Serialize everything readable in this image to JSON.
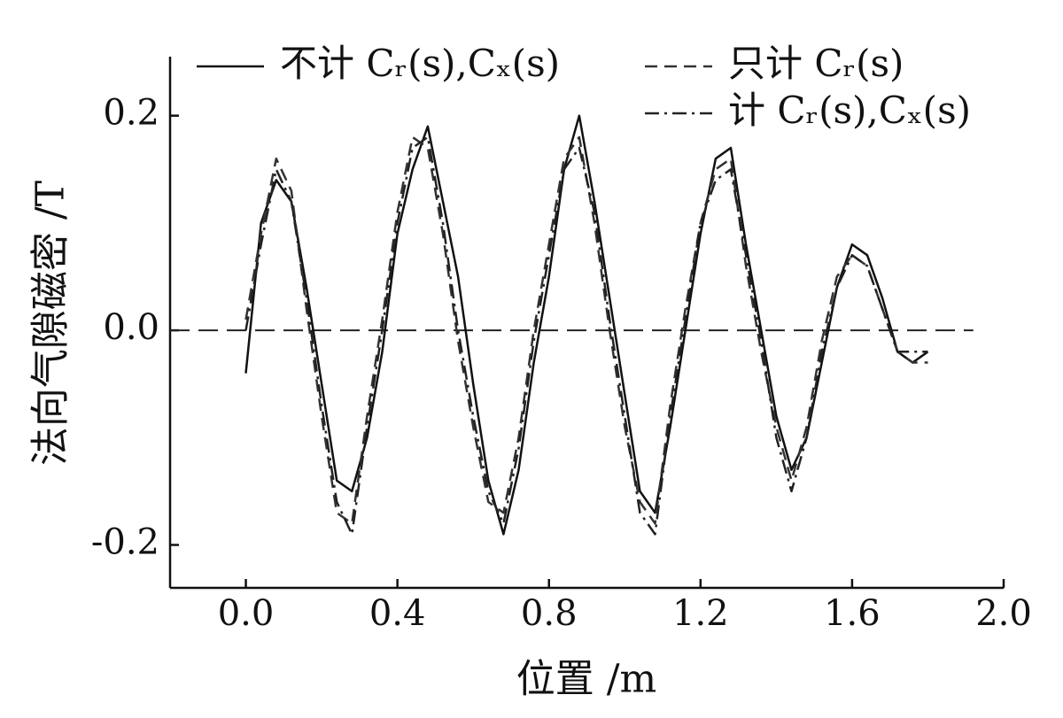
{
  "chart_data": {
    "type": "line",
    "x_label": "位置 /m",
    "y_label": "法向气隙磁密 /T",
    "x": [
      0,
      0.04,
      0.08,
      0.12,
      0.16,
      0.2,
      0.24,
      0.28,
      0.32,
      0.36,
      0.4,
      0.44,
      0.48,
      0.52,
      0.56,
      0.6,
      0.64,
      0.68,
      0.72,
      0.76,
      0.8,
      0.84,
      0.88,
      0.92,
      0.96,
      1.0,
      1.04,
      1.08,
      1.12,
      1.16,
      1.2,
      1.24,
      1.28,
      1.32,
      1.36,
      1.4,
      1.44,
      1.48,
      1.52,
      1.56,
      1.6,
      1.64,
      1.68,
      1.72,
      1.76,
      1.8
    ],
    "series": [
      {
        "name": "不计 Cᵣ(s),Cₓ(s)",
        "color": "#111111",
        "dash": "solid",
        "values": [
          -0.04,
          0.1,
          0.14,
          0.12,
          0.04,
          -0.05,
          -0.14,
          -0.15,
          -0.1,
          -0.02,
          0.09,
          0.15,
          0.19,
          0.12,
          0.05,
          -0.05,
          -0.14,
          -0.19,
          -0.13,
          -0.03,
          0.05,
          0.15,
          0.2,
          0.12,
          0.03,
          -0.06,
          -0.15,
          -0.17,
          -0.09,
          0.0,
          0.09,
          0.16,
          0.17,
          0.08,
          0.0,
          -0.08,
          -0.13,
          -0.1,
          -0.03,
          0.04,
          0.08,
          0.07,
          0.03,
          -0.02,
          -0.03,
          -0.02
        ]
      },
      {
        "name": "只计 Cᵣ(s)",
        "color": "#333333",
        "dash": "dashed",
        "values": [
          0.01,
          0.09,
          0.16,
          0.13,
          0.02,
          -0.08,
          -0.17,
          -0.18,
          -0.08,
          0.01,
          0.11,
          0.18,
          0.17,
          0.09,
          -0.01,
          -0.09,
          -0.16,
          -0.17,
          -0.1,
          0.0,
          0.08,
          0.16,
          0.18,
          0.1,
          0.0,
          -0.09,
          -0.16,
          -0.18,
          -0.07,
          0.02,
          0.1,
          0.15,
          0.16,
          0.06,
          -0.02,
          -0.09,
          -0.14,
          -0.09,
          -0.01,
          0.05,
          0.07,
          0.06,
          0.02,
          -0.02,
          -0.03,
          -0.03
        ]
      },
      {
        "name": "计 Cᵣ(s),Cₓ(s)",
        "color": "#222222",
        "dash": "dashdot",
        "values": [
          0.0,
          0.08,
          0.15,
          0.12,
          0.03,
          -0.07,
          -0.16,
          -0.19,
          -0.09,
          0.0,
          0.1,
          0.17,
          0.18,
          0.1,
          0.0,
          -0.08,
          -0.15,
          -0.18,
          -0.11,
          -0.01,
          0.07,
          0.15,
          0.17,
          0.11,
          0.01,
          -0.08,
          -0.17,
          -0.19,
          -0.08,
          0.01,
          0.1,
          0.14,
          0.15,
          0.07,
          -0.01,
          -0.1,
          -0.15,
          -0.1,
          -0.02,
          0.04,
          0.07,
          0.06,
          0.02,
          -0.02,
          -0.02,
          -0.02
        ]
      }
    ],
    "xlim": [
      -0.2,
      2.0
    ],
    "ylim": [
      -0.24,
      0.255
    ],
    "xticks": [
      {
        "value": 0,
        "label": "0.0"
      },
      0.4,
      0.8,
      1.2,
      1.6,
      {
        "value": 2,
        "label": "2.0"
      }
    ],
    "yticks": [
      -0.2,
      {
        "value": 0,
        "label": "0.0"
      },
      0.2
    ],
    "reference_line": 0,
    "grid": false
  }
}
